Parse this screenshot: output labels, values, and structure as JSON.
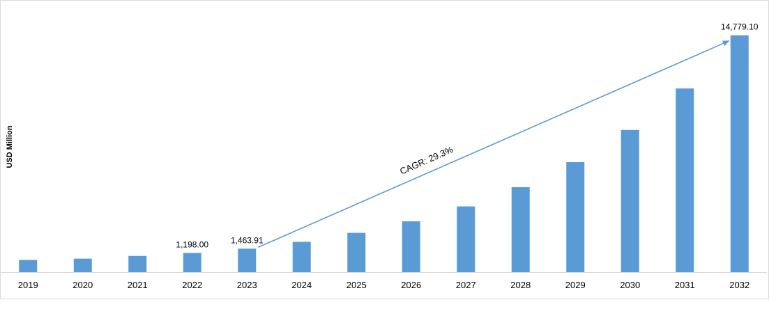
{
  "chart_data": {
    "type": "bar",
    "ylabel": "USD Million",
    "xlabel": "",
    "categories": [
      "2019",
      "2020",
      "2021",
      "2022",
      "2023",
      "2024",
      "2025",
      "2026",
      "2027",
      "2028",
      "2029",
      "2030",
      "2031",
      "2032"
    ],
    "values": [
      760,
      840,
      1010,
      1198.0,
      1463.91,
      1890,
      2450,
      3170,
      4100,
      5300,
      6860,
      8870,
      11460,
      14779.1
    ],
    "data_labels": [
      {
        "index": 3,
        "text": "1,198.00"
      },
      {
        "index": 4,
        "text": "1,463.91"
      },
      {
        "index": 13,
        "text": "14,779.10"
      }
    ],
    "ylim": [
      0,
      15200
    ],
    "grid": false,
    "bar_color": "#5b9bd5",
    "annotation": {
      "text": "CAGR: 29.3%",
      "arrow_from_category": "2023",
      "arrow_to_category": "2032",
      "arrow_color": "#5b9bd5"
    }
  }
}
